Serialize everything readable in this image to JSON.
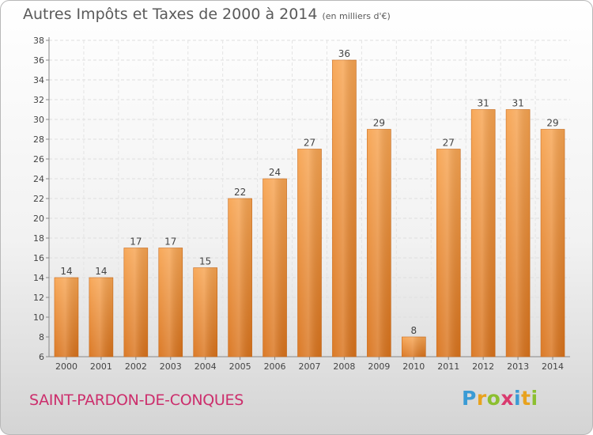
{
  "title": "Autres Impôts et Taxes de 2000 à 2014",
  "unit": "(en milliers d'€)",
  "commune": "SAINT-PARDON-DE-CONQUES",
  "logo": {
    "text": "Proxiti",
    "colors": [
      "#3a9bd5",
      "#e8a21e",
      "#8cbf2f",
      "#d93a6e",
      "#3a9bd5",
      "#e8a21e",
      "#8cbf2f"
    ]
  },
  "chart_data": {
    "type": "bar",
    "categories": [
      "2000",
      "2001",
      "2002",
      "2003",
      "2004",
      "2005",
      "2006",
      "2007",
      "2008",
      "2009",
      "2010",
      "2011",
      "2012",
      "2013",
      "2014"
    ],
    "values": [
      14,
      14,
      17,
      17,
      15,
      22,
      24,
      27,
      36,
      29,
      8,
      27,
      31,
      31,
      29
    ],
    "ylim": [
      6,
      38
    ],
    "yticks": [
      6,
      8,
      10,
      12,
      14,
      16,
      18,
      20,
      22,
      24,
      26,
      28,
      30,
      32,
      34,
      36,
      38
    ],
    "grid": true,
    "bar_color": "#e8862a",
    "legend": "none"
  }
}
